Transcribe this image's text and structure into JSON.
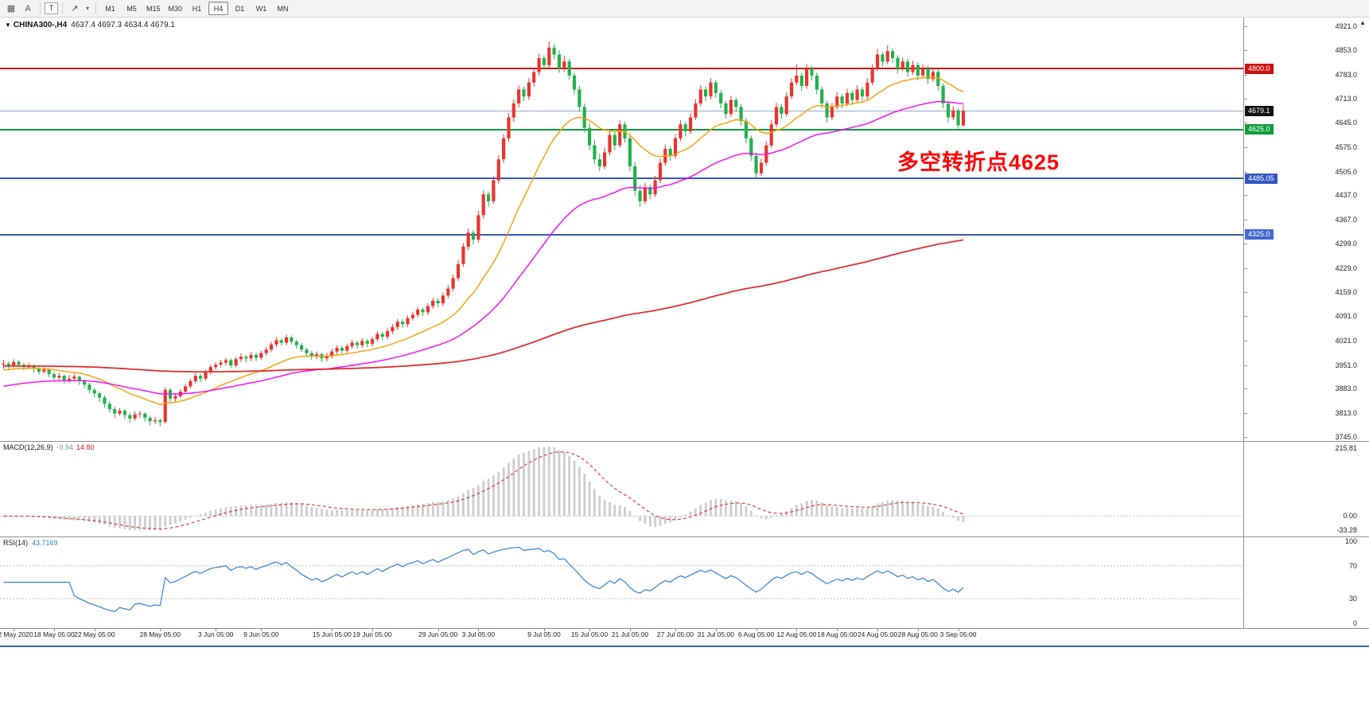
{
  "toolbar": {
    "tools": [
      {
        "name": "chart-windows",
        "glyph": "▦"
      },
      {
        "name": "cursor-tool",
        "glyph": "A"
      },
      {
        "name": "text-tool",
        "glyph": "T"
      },
      {
        "name": "drawing-tool",
        "glyph": "↗"
      },
      {
        "name": "tools-dropdown",
        "glyph": "▾"
      }
    ],
    "timeframes": [
      "M1",
      "M5",
      "M15",
      "M30",
      "H1",
      "H4",
      "D1",
      "W1",
      "MN"
    ],
    "active_timeframe": "H4"
  },
  "chart": {
    "title": {
      "dropdown_icon": "▼",
      "symbol": "CHINA300-,H4",
      "ohlc": "4637.4 4697.3 4634.4 4679.1"
    },
    "annotation": "多空转折点4625",
    "price_axis_labels": [
      "4921.0",
      "4853.0",
      "4783.0",
      "4713.0",
      "4645.0",
      "4575.0",
      "4505.0",
      "4437.0",
      "4367.0",
      "4299.0",
      "4229.0",
      "4159.0",
      "4091.0",
      "4021.0",
      "3951.0",
      "3883.0",
      "3813.0",
      "3745.0"
    ],
    "time_axis": [
      {
        "t": "12 May 2020",
        "i": 2
      },
      {
        "t": "18 May 05:00",
        "i": 10
      },
      {
        "t": "22 May 05:00",
        "i": 18
      },
      {
        "t": "28 May 05:00",
        "i": 31
      },
      {
        "t": "3 Jun 05:00",
        "i": 42
      },
      {
        "t": "9 Jun 05:00",
        "i": 51
      },
      {
        "t": "15 Jun 05:00",
        "i": 65
      },
      {
        "t": "19 Jun 05:00",
        "i": 73
      },
      {
        "t": "29 Jun 05:00",
        "i": 86
      },
      {
        "t": "3 Jul 05:00",
        "i": 94
      },
      {
        "t": "9 Jul 05:00",
        "i": 107
      },
      {
        "t": "15 Jul 05:00",
        "i": 116
      },
      {
        "t": "21 Jul 05:00",
        "i": 124
      },
      {
        "t": "27 Jul 05:00",
        "i": 133
      },
      {
        "t": "31 Jul 05:00",
        "i": 141
      },
      {
        "t": "6 Aug 05:00",
        "i": 149
      },
      {
        "t": "12 Aug 05:00",
        "i": 157
      },
      {
        "t": "18 Aug 05:00",
        "i": 165
      },
      {
        "t": "24 Aug 05:00",
        "i": 173
      },
      {
        "t": "28 Aug 05:00",
        "i": 181
      },
      {
        "t": "3 Sep 05:00",
        "i": 189
      }
    ]
  },
  "macd_panel": {
    "label": "MACD(12,26,9)",
    "main_value": "-9.94",
    "signal_value": "14.80",
    "scale_top": "215.81",
    "scale_zero": "0.00",
    "scale_bottom": "-33.28"
  },
  "rsi_panel": {
    "label": "RSI(14)",
    "value": "43.7169",
    "scale": [
      "100",
      "70",
      "30",
      "0"
    ],
    "levels": [
      70,
      30
    ]
  },
  "chart_data": {
    "type": "candlestick",
    "symbol": "CHINA300-",
    "period": "H4",
    "ylim": [
      3745,
      4921
    ],
    "up_color": "#e8352e",
    "down_color": "#23b14d",
    "candles": [
      [
        3952,
        3966,
        3940,
        3955
      ],
      [
        3955,
        3962,
        3938,
        3948
      ],
      [
        3948,
        3968,
        3944,
        3960
      ],
      [
        3960,
        3965,
        3945,
        3952
      ],
      [
        3952,
        3958,
        3936,
        3945
      ],
      [
        3945,
        3957,
        3940,
        3950
      ],
      [
        3950,
        3954,
        3930,
        3940
      ],
      [
        3940,
        3946,
        3924,
        3932
      ],
      [
        3932,
        3944,
        3926,
        3938
      ],
      [
        3938,
        3942,
        3916,
        3925
      ],
      [
        3925,
        3930,
        3905,
        3915
      ],
      [
        3915,
        3928,
        3908,
        3920
      ],
      [
        3920,
        3924,
        3898,
        3908
      ],
      [
        3908,
        3922,
        3900,
        3912
      ],
      [
        3912,
        3926,
        3904,
        3918
      ],
      [
        3918,
        3921,
        3894,
        3905
      ],
      [
        3905,
        3910,
        3884,
        3895
      ],
      [
        3895,
        3900,
        3870,
        3880
      ],
      [
        3880,
        3886,
        3858,
        3870
      ],
      [
        3870,
        3876,
        3846,
        3858
      ],
      [
        3858,
        3864,
        3830,
        3840
      ],
      [
        3840,
        3848,
        3814,
        3825
      ],
      [
        3825,
        3832,
        3800,
        3812
      ],
      [
        3812,
        3828,
        3806,
        3820
      ],
      [
        3820,
        3825,
        3796,
        3808
      ],
      [
        3808,
        3815,
        3786,
        3798
      ],
      [
        3798,
        3818,
        3792,
        3810
      ],
      [
        3810,
        3820,
        3800,
        3812
      ],
      [
        3812,
        3816,
        3790,
        3800
      ],
      [
        3800,
        3806,
        3778,
        3790
      ],
      [
        3790,
        3802,
        3782,
        3793
      ],
      [
        3793,
        3798,
        3776,
        3788
      ],
      [
        3788,
        3888,
        3784,
        3880
      ],
      [
        3880,
        3886,
        3844,
        3855
      ],
      [
        3855,
        3870,
        3846,
        3862
      ],
      [
        3862,
        3882,
        3856,
        3875
      ],
      [
        3875,
        3896,
        3868,
        3890
      ],
      [
        3890,
        3912,
        3884,
        3905
      ],
      [
        3905,
        3928,
        3898,
        3920
      ],
      [
        3920,
        3926,
        3902,
        3912
      ],
      [
        3912,
        3938,
        3906,
        3930
      ],
      [
        3930,
        3952,
        3924,
        3945
      ],
      [
        3945,
        3960,
        3938,
        3952
      ],
      [
        3952,
        3966,
        3944,
        3958
      ],
      [
        3958,
        3972,
        3950,
        3965
      ],
      [
        3965,
        3970,
        3942,
        3950
      ],
      [
        3950,
        3974,
        3944,
        3968
      ],
      [
        3968,
        3984,
        3960,
        3975
      ],
      [
        3975,
        3980,
        3958,
        3970
      ],
      [
        3970,
        3988,
        3962,
        3980
      ],
      [
        3980,
        3986,
        3962,
        3972
      ],
      [
        3972,
        3992,
        3966,
        3985
      ],
      [
        3985,
        4002,
        3978,
        3995
      ],
      [
        3995,
        4018,
        3988,
        4010
      ],
      [
        4010,
        4030,
        4002,
        4022
      ],
      [
        4022,
        4028,
        4006,
        4015
      ],
      [
        4015,
        4038,
        4008,
        4030
      ],
      [
        4030,
        4036,
        4010,
        4018
      ],
      [
        4018,
        4024,
        3998,
        4008
      ],
      [
        4008,
        4014,
        3988,
        3995
      ],
      [
        3995,
        4000,
        3976,
        3985
      ],
      [
        3985,
        3992,
        3966,
        3975
      ],
      [
        3975,
        3990,
        3968,
        3982
      ],
      [
        3982,
        3986,
        3960,
        3970
      ],
      [
        3970,
        3986,
        3962,
        3978
      ],
      [
        3978,
        3998,
        3970,
        3990
      ],
      [
        3990,
        4008,
        3982,
        4000
      ],
      [
        4000,
        4006,
        3984,
        3992
      ],
      [
        3992,
        4012,
        3986,
        4005
      ],
      [
        4005,
        4024,
        3998,
        4015
      ],
      [
        4015,
        4020,
        3998,
        4008
      ],
      [
        4008,
        4028,
        4000,
        4020
      ],
      [
        4020,
        4026,
        4002,
        4012
      ],
      [
        4012,
        4032,
        4004,
        4025
      ],
      [
        4025,
        4048,
        4018,
        4040
      ],
      [
        4040,
        4046,
        4022,
        4032
      ],
      [
        4032,
        4056,
        4024,
        4048
      ],
      [
        4048,
        4068,
        4040,
        4060
      ],
      [
        4060,
        4083,
        4052,
        4075
      ],
      [
        4075,
        4082,
        4058,
        4068
      ],
      [
        4068,
        4093,
        4060,
        4085
      ],
      [
        4085,
        4104,
        4078,
        4095
      ],
      [
        4095,
        4118,
        4088,
        4110
      ],
      [
        4110,
        4116,
        4092,
        4102
      ],
      [
        4102,
        4128,
        4094,
        4120
      ],
      [
        4120,
        4143,
        4112,
        4135
      ],
      [
        4135,
        4142,
        4116,
        4128
      ],
      [
        4128,
        4158,
        4120,
        4150
      ],
      [
        4150,
        4180,
        4142,
        4170
      ],
      [
        4170,
        4210,
        4162,
        4200
      ],
      [
        4200,
        4252,
        4192,
        4240
      ],
      [
        4240,
        4300,
        4232,
        4290
      ],
      [
        4290,
        4342,
        4280,
        4330
      ],
      [
        4330,
        4338,
        4296,
        4310
      ],
      [
        4310,
        4392,
        4302,
        4380
      ],
      [
        4380,
        4452,
        4370,
        4440
      ],
      [
        4440,
        4448,
        4404,
        4420
      ],
      [
        4420,
        4492,
        4412,
        4480
      ],
      [
        4480,
        4552,
        4470,
        4540
      ],
      [
        4540,
        4612,
        4530,
        4600
      ],
      [
        4600,
        4672,
        4590,
        4660
      ],
      [
        4660,
        4712,
        4648,
        4700
      ],
      [
        4700,
        4752,
        4688,
        4740
      ],
      [
        4740,
        4748,
        4706,
        4720
      ],
      [
        4720,
        4772,
        4710,
        4760
      ],
      [
        4760,
        4802,
        4748,
        4790
      ],
      [
        4790,
        4843,
        4780,
        4830
      ],
      [
        4830,
        4838,
        4796,
        4810
      ],
      [
        4810,
        4877,
        4800,
        4860
      ],
      [
        4860,
        4870,
        4826,
        4840
      ],
      [
        4840,
        4852,
        4788,
        4800
      ],
      [
        4800,
        4836,
        4790,
        4820
      ],
      [
        4820,
        4828,
        4768,
        4780
      ],
      [
        4780,
        4788,
        4726,
        4740
      ],
      [
        4740,
        4750,
        4676,
        4690
      ],
      [
        4690,
        4700,
        4616,
        4630
      ],
      [
        4630,
        4644,
        4566,
        4580
      ],
      [
        4580,
        4596,
        4526,
        4540
      ],
      [
        4540,
        4556,
        4506,
        4520
      ],
      [
        4520,
        4574,
        4512,
        4560
      ],
      [
        4560,
        4622,
        4552,
        4610
      ],
      [
        4610,
        4618,
        4566,
        4580
      ],
      [
        4580,
        4652,
        4572,
        4640
      ],
      [
        4640,
        4648,
        4588,
        4600
      ],
      [
        4600,
        4612,
        4506,
        4520
      ],
      [
        4520,
        4532,
        4436,
        4450
      ],
      [
        4450,
        4466,
        4404,
        4420
      ],
      [
        4420,
        4472,
        4412,
        4460
      ],
      [
        4460,
        4468,
        4426,
        4440
      ],
      [
        4440,
        4492,
        4432,
        4480
      ],
      [
        4480,
        4542,
        4472,
        4530
      ],
      [
        4530,
        4582,
        4522,
        4570
      ],
      [
        4570,
        4578,
        4536,
        4550
      ],
      [
        4550,
        4612,
        4542,
        4600
      ],
      [
        4600,
        4652,
        4592,
        4640
      ],
      [
        4640,
        4648,
        4606,
        4620
      ],
      [
        4620,
        4672,
        4612,
        4660
      ],
      [
        4660,
        4712,
        4652,
        4700
      ],
      [
        4700,
        4752,
        4692,
        4740
      ],
      [
        4740,
        4748,
        4706,
        4720
      ],
      [
        4720,
        4772,
        4712,
        4760
      ],
      [
        4760,
        4768,
        4716,
        4730
      ],
      [
        4730,
        4738,
        4686,
        4700
      ],
      [
        4700,
        4708,
        4656,
        4670
      ],
      [
        4670,
        4722,
        4662,
        4710
      ],
      [
        4710,
        4718,
        4676,
        4690
      ],
      [
        4690,
        4698,
        4636,
        4650
      ],
      [
        4650,
        4658,
        4586,
        4600
      ],
      [
        4600,
        4608,
        4536,
        4550
      ],
      [
        4550,
        4560,
        4486,
        4500
      ],
      [
        4500,
        4542,
        4492,
        4530
      ],
      [
        4530,
        4592,
        4522,
        4580
      ],
      [
        4580,
        4652,
        4572,
        4640
      ],
      [
        4640,
        4702,
        4632,
        4690
      ],
      [
        4690,
        4698,
        4656,
        4670
      ],
      [
        4670,
        4732,
        4662,
        4720
      ],
      [
        4720,
        4772,
        4712,
        4760
      ],
      [
        4760,
        4812,
        4752,
        4780
      ],
      [
        4780,
        4788,
        4736,
        4750
      ],
      [
        4750,
        4813,
        4742,
        4800
      ],
      [
        4800,
        4808,
        4766,
        4780
      ],
      [
        4780,
        4788,
        4726,
        4740
      ],
      [
        4740,
        4748,
        4686,
        4700
      ],
      [
        4700,
        4708,
        4646,
        4660
      ],
      [
        4660,
        4702,
        4652,
        4690
      ],
      [
        4690,
        4732,
        4682,
        4720
      ],
      [
        4720,
        4728,
        4686,
        4700
      ],
      [
        4700,
        4742,
        4692,
        4730
      ],
      [
        4730,
        4738,
        4696,
        4710
      ],
      [
        4710,
        4752,
        4702,
        4740
      ],
      [
        4740,
        4748,
        4706,
        4720
      ],
      [
        4720,
        4772,
        4712,
        4760
      ],
      [
        4760,
        4812,
        4752,
        4800
      ],
      [
        4800,
        4856,
        4792,
        4840
      ],
      [
        4840,
        4848,
        4806,
        4820
      ],
      [
        4820,
        4866,
        4812,
        4850
      ],
      [
        4850,
        4858,
        4816,
        4830
      ],
      [
        4830,
        4838,
        4786,
        4800
      ],
      [
        4800,
        4832,
        4792,
        4820
      ],
      [
        4820,
        4828,
        4776,
        4790
      ],
      [
        4790,
        4822,
        4782,
        4810
      ],
      [
        4810,
        4818,
        4766,
        4780
      ],
      [
        4780,
        4812,
        4772,
        4800
      ],
      [
        4800,
        4808,
        4756,
        4770
      ],
      [
        4770,
        4802,
        4762,
        4790
      ],
      [
        4790,
        4798,
        4736,
        4750
      ],
      [
        4750,
        4758,
        4686,
        4700
      ],
      [
        4700,
        4708,
        4646,
        4660
      ],
      [
        4660,
        4692,
        4652,
        4680
      ],
      [
        4680,
        4686,
        4628,
        4637
      ],
      [
        4637,
        4697,
        4634,
        4679
      ]
    ],
    "moving_averages": [
      {
        "name": "fast",
        "period": 21,
        "color": "#ff9d00",
        "start": 3935
      },
      {
        "name": "medium",
        "period": 55,
        "color": "#ff00ff",
        "start": 3888
      },
      {
        "name": "slow",
        "period": 300,
        "color": "#e03030",
        "start": 3948
      }
    ],
    "hlines": [
      {
        "price": 4800,
        "color": "#cc1111",
        "width": 2,
        "label": "4800.0",
        "label_bg": "#cc1111"
      },
      {
        "price": 4679.1,
        "color": "#8fa8c8",
        "width": 1,
        "label": "4679.1",
        "label_bg": "#111111"
      },
      {
        "price": 4625,
        "color": "#0f9d3a",
        "width": 2,
        "label": "4625.0",
        "label_bg": "#0f9d3a"
      },
      {
        "price": 4485.05,
        "color": "#3558c0",
        "width": 2,
        "label": "4485.05",
        "label_bg": "#3558c0"
      },
      {
        "price": 4325,
        "color": "#3558c0",
        "width": 2,
        "label": "4325.0",
        "label_bg": "#4169d0"
      }
    ],
    "indicators": [
      {
        "type": "MACD",
        "fast": 12,
        "slow": 26,
        "signal": 9
      },
      {
        "type": "RSI",
        "period": 14
      }
    ]
  }
}
